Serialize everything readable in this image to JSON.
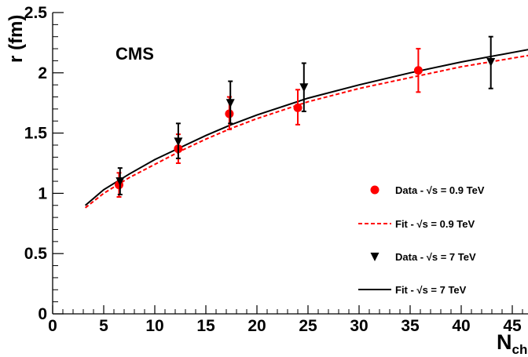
{
  "chart_data": {
    "type": "scatter",
    "experiment_label": "CMS",
    "xlabel_main": "N",
    "xlabel_sub": "ch",
    "ylabel": "r (fm)",
    "xlim": [
      0,
      47
    ],
    "ylim": [
      0,
      2.5
    ],
    "x_ticks": [
      0,
      5,
      10,
      15,
      20,
      25,
      30,
      35,
      40,
      45
    ],
    "x_tick_labels": [
      "0",
      "5",
      "10",
      "15",
      "20",
      "25",
      "30",
      "35",
      "40",
      "45"
    ],
    "y_ticks": [
      0,
      0.5,
      1,
      1.5,
      2,
      2.5
    ],
    "y_tick_labels": [
      "0",
      "0.5",
      "1",
      "1.5",
      "2",
      "2.5"
    ],
    "grid": false,
    "legend_position": "right",
    "series": [
      {
        "name": "Data - √s = 0.9 TeV",
        "kind": "points",
        "marker": "circle",
        "color": "#ff0000",
        "x": [
          6.5,
          12.3,
          17.3,
          24.0,
          35.8
        ],
        "y": [
          1.07,
          1.37,
          1.66,
          1.71,
          2.02
        ],
        "err_low": [
          0.1,
          0.12,
          0.13,
          0.14,
          0.18
        ],
        "err_high": [
          0.1,
          0.12,
          0.14,
          0.15,
          0.18
        ]
      },
      {
        "name": "Fit - √s = 0.9 TeV",
        "kind": "line",
        "style": "dashed",
        "color": "#ff0000",
        "x": [
          3.2,
          5,
          7.5,
          10,
          12.5,
          15,
          17.5,
          20,
          25,
          30,
          35,
          40,
          47
        ],
        "y": [
          0.88,
          1.0,
          1.13,
          1.24,
          1.35,
          1.45,
          1.54,
          1.62,
          1.76,
          1.87,
          1.96,
          2.05,
          2.15
        ]
      },
      {
        "name": "Data - √s = 7 TeV",
        "kind": "points",
        "marker": "triangle-down",
        "color": "#000000",
        "x": [
          6.6,
          12.3,
          17.4,
          24.6,
          42.9
        ],
        "y": [
          1.1,
          1.43,
          1.75,
          1.88,
          2.09
        ],
        "err_low": [
          0.11,
          0.14,
          0.17,
          0.2,
          0.22
        ],
        "err_high": [
          0.11,
          0.15,
          0.18,
          0.2,
          0.21
        ]
      },
      {
        "name": "Fit - √s = 7 TeV",
        "kind": "line",
        "style": "solid",
        "color": "#000000",
        "x": [
          3.2,
          5,
          7.5,
          10,
          12.5,
          15,
          17.5,
          20,
          25,
          30,
          35,
          40,
          47
        ],
        "y": [
          0.9,
          1.03,
          1.16,
          1.28,
          1.38,
          1.48,
          1.57,
          1.65,
          1.79,
          1.9,
          2.0,
          2.09,
          2.2
        ]
      }
    ]
  }
}
